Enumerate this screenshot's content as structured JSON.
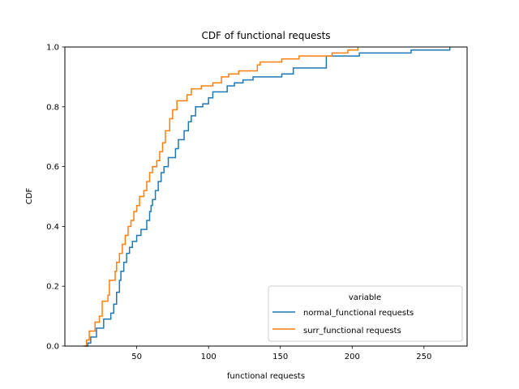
{
  "chart_data": {
    "type": "line",
    "title": "CDF of functional requests",
    "xlabel": "functional requests",
    "ylabel": "CDF",
    "xlim": [
      0,
      280
    ],
    "ylim": [
      0,
      1.0
    ],
    "xticks": [
      50,
      100,
      150,
      200,
      250
    ],
    "xtick_labels": [
      "50",
      "100",
      "150",
      "200",
      "250"
    ],
    "yticks": [
      0.0,
      0.2,
      0.4,
      0.6,
      0.8,
      1.0
    ],
    "ytick_labels": [
      "0.0",
      "0.2",
      "0.4",
      "0.6",
      "0.8",
      "1.0"
    ],
    "grid": false,
    "legend": {
      "title": "variable",
      "placement": "lower-right",
      "entries": [
        "normal_functional requests",
        "surr_functional requests"
      ]
    },
    "series": [
      {
        "name": "normal_functional requests",
        "color": "#1f77b4",
        "step": true,
        "points": [
          [
            14,
            0.0
          ],
          [
            16,
            0.01
          ],
          [
            18,
            0.03
          ],
          [
            22,
            0.06
          ],
          [
            27,
            0.09
          ],
          [
            32,
            0.11
          ],
          [
            34,
            0.14
          ],
          [
            36,
            0.18
          ],
          [
            38,
            0.22
          ],
          [
            39,
            0.25
          ],
          [
            41,
            0.28
          ],
          [
            43,
            0.31
          ],
          [
            45,
            0.33
          ],
          [
            47,
            0.35
          ],
          [
            50,
            0.37
          ],
          [
            53,
            0.39
          ],
          [
            57,
            0.42
          ],
          [
            59,
            0.45
          ],
          [
            60,
            0.47
          ],
          [
            61,
            0.49
          ],
          [
            63,
            0.52
          ],
          [
            65,
            0.55
          ],
          [
            67,
            0.58
          ],
          [
            69,
            0.6
          ],
          [
            72,
            0.63
          ],
          [
            77,
            0.66
          ],
          [
            79,
            0.69
          ],
          [
            83,
            0.72
          ],
          [
            86,
            0.75
          ],
          [
            88,
            0.77
          ],
          [
            91,
            0.8
          ],
          [
            96,
            0.81
          ],
          [
            100,
            0.83
          ],
          [
            103,
            0.85
          ],
          [
            113,
            0.87
          ],
          [
            118,
            0.88
          ],
          [
            124,
            0.89
          ],
          [
            131,
            0.9
          ],
          [
            151,
            0.91
          ],
          [
            159,
            0.93
          ],
          [
            182,
            0.97
          ],
          [
            205,
            0.98
          ],
          [
            241,
            0.99
          ],
          [
            268,
            1.0
          ]
        ]
      },
      {
        "name": "surr_functional requests",
        "color": "#ff7f0e",
        "step": true,
        "points": [
          [
            13,
            0.0
          ],
          [
            15,
            0.02
          ],
          [
            17,
            0.05
          ],
          [
            21,
            0.08
          ],
          [
            24,
            0.1
          ],
          [
            26,
            0.15
          ],
          [
            30,
            0.17
          ],
          [
            31,
            0.22
          ],
          [
            35,
            0.25
          ],
          [
            36,
            0.28
          ],
          [
            38,
            0.31
          ],
          [
            40,
            0.34
          ],
          [
            42,
            0.37
          ],
          [
            44,
            0.4
          ],
          [
            46,
            0.42
          ],
          [
            48,
            0.45
          ],
          [
            50,
            0.47
          ],
          [
            52,
            0.5
          ],
          [
            55,
            0.52
          ],
          [
            57,
            0.55
          ],
          [
            59,
            0.58
          ],
          [
            61,
            0.6
          ],
          [
            64,
            0.62
          ],
          [
            66,
            0.65
          ],
          [
            68,
            0.68
          ],
          [
            70,
            0.72
          ],
          [
            73,
            0.76
          ],
          [
            75,
            0.79
          ],
          [
            78,
            0.82
          ],
          [
            85,
            0.84
          ],
          [
            88,
            0.86
          ],
          [
            95,
            0.87
          ],
          [
            103,
            0.88
          ],
          [
            109,
            0.9
          ],
          [
            114,
            0.91
          ],
          [
            121,
            0.92
          ],
          [
            134,
            0.94
          ],
          [
            136,
            0.95
          ],
          [
            151,
            0.96
          ],
          [
            163,
            0.97
          ],
          [
            172,
            0.97
          ],
          [
            179,
            0.97
          ],
          [
            186,
            0.98
          ],
          [
            197,
            0.99
          ],
          [
            204,
            1.0
          ]
        ]
      }
    ]
  }
}
